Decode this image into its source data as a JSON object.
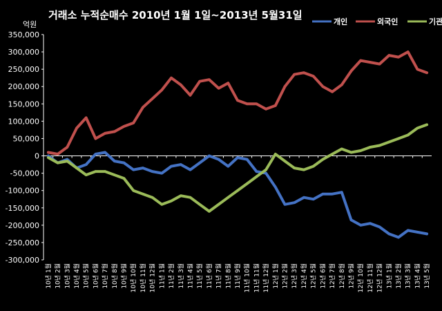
{
  "chart_data": {
    "type": "line",
    "title": "거래소 누적순매수 2010년 1월 1일~2013년 5월31일",
    "unit_label": "억원",
    "ylim": [
      -300000,
      350000
    ],
    "yticks": [
      {
        "value": 350000,
        "label": "350,000"
      },
      {
        "value": 300000,
        "label": "300,000"
      },
      {
        "value": 250000,
        "label": "250,000"
      },
      {
        "value": 200000,
        "label": "200,000"
      },
      {
        "value": 150000,
        "label": "150,000"
      },
      {
        "value": 100000,
        "label": "100,000"
      },
      {
        "value": 50000,
        "label": "50,000"
      },
      {
        "value": 0,
        "label": "0"
      },
      {
        "value": -50000,
        "label": "-50,000"
      },
      {
        "value": -100000,
        "label": "-100,000"
      },
      {
        "value": -150000,
        "label": "-150,000"
      },
      {
        "value": -200000,
        "label": "-200,000"
      },
      {
        "value": -250000,
        "label": "-250,000"
      },
      {
        "value": -300000,
        "label": "-300,000"
      }
    ],
    "grid": false,
    "legend_position": "top-right",
    "categories": [
      "10년 1월",
      "10년 2월",
      "10년 3월",
      "10년 4월",
      "10년 5월",
      "10년 6월",
      "10년 7월",
      "10년 8월",
      "10년 9월",
      "10년 10월",
      "10년 11월",
      "10년 12월",
      "11년 1월",
      "11년 2월",
      "11년 3월",
      "11년 4월",
      "11년 5월",
      "11년 6월",
      "11년 7월",
      "11년 8월",
      "11년 9월",
      "11년 10월",
      "11년 11월",
      "11년 12월",
      "12년 1월",
      "12년 2월",
      "12년 3월",
      "12년 4월",
      "12년 5월",
      "12년 6월",
      "12년 7월",
      "12년 8월",
      "12년 9월",
      "12년 10월",
      "12년 11월",
      "12년 12월",
      "13년 1월",
      "13년 2월",
      "13년 3월",
      "13년 4월",
      "13년 5월"
    ],
    "series": [
      {
        "name": "개인",
        "color": "#4472C4",
        "values": [
          0,
          -20000,
          -10000,
          -35000,
          -25000,
          5000,
          10000,
          -15000,
          -20000,
          -40000,
          -35000,
          -45000,
          -50000,
          -30000,
          -25000,
          -40000,
          -20000,
          0,
          -10000,
          -30000,
          -5000,
          -10000,
          -45000,
          -50000,
          -90000,
          -140000,
          -135000,
          -120000,
          -125000,
          -110000,
          -110000,
          -105000,
          -185000,
          -200000,
          -195000,
          -205000,
          -225000,
          -235000,
          -215000,
          -220000,
          -225000
        ]
      },
      {
        "name": "외국인",
        "color": "#C0504D",
        "values": [
          10000,
          5000,
          25000,
          80000,
          110000,
          50000,
          65000,
          70000,
          85000,
          95000,
          140000,
          165000,
          190000,
          225000,
          205000,
          175000,
          215000,
          220000,
          195000,
          210000,
          160000,
          150000,
          150000,
          135000,
          145000,
          200000,
          235000,
          240000,
          230000,
          200000,
          185000,
          205000,
          245000,
          275000,
          270000,
          265000,
          290000,
          285000,
          300000,
          250000,
          240000
        ]
      },
      {
        "name": "기관",
        "color": "#9BBB59",
        "values": [
          -5000,
          -20000,
          -15000,
          -35000,
          -55000,
          -45000,
          -45000,
          -55000,
          -65000,
          -100000,
          -110000,
          -120000,
          -140000,
          -130000,
          -115000,
          -120000,
          -140000,
          -160000,
          -140000,
          -120000,
          -100000,
          -80000,
          -60000,
          -40000,
          5000,
          -15000,
          -35000,
          -40000,
          -30000,
          -10000,
          5000,
          20000,
          10000,
          15000,
          25000,
          30000,
          40000,
          50000,
          60000,
          80000,
          90000
        ]
      }
    ]
  }
}
